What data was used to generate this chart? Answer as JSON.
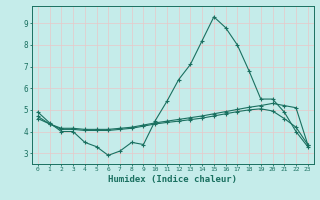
{
  "xlabel": "Humidex (Indice chaleur)",
  "background_color": "#c5ecea",
  "grid_color": "#e0f0ee",
  "line_color": "#1a7060",
  "x_ticks": [
    0,
    1,
    2,
    3,
    4,
    5,
    6,
    7,
    8,
    9,
    10,
    11,
    12,
    13,
    14,
    15,
    16,
    17,
    18,
    19,
    20,
    21,
    22,
    23
  ],
  "ylim": [
    2.5,
    9.8
  ],
  "xlim": [
    -0.5,
    23.5
  ],
  "line1_x": [
    0,
    1,
    2,
    3,
    4,
    5,
    6,
    7,
    8,
    9,
    10,
    11,
    12,
    13,
    14,
    15,
    16,
    17,
    18,
    19,
    20,
    21,
    22,
    23
  ],
  "line1_y": [
    4.9,
    4.4,
    4.0,
    4.0,
    3.5,
    3.3,
    2.9,
    3.1,
    3.5,
    3.4,
    4.5,
    5.4,
    6.4,
    7.1,
    8.2,
    9.3,
    8.8,
    8.0,
    6.8,
    5.5,
    5.5,
    4.9,
    4.0,
    3.3
  ],
  "line2_x": [
    0,
    1,
    2,
    3,
    4,
    5,
    6,
    7,
    8,
    9,
    10,
    11,
    12,
    13,
    14,
    15,
    16,
    17,
    18,
    19,
    20,
    21,
    22,
    23
  ],
  "line2_y": [
    4.7,
    4.35,
    4.1,
    4.1,
    4.05,
    4.05,
    4.05,
    4.1,
    4.15,
    4.25,
    4.35,
    4.42,
    4.48,
    4.55,
    4.62,
    4.72,
    4.82,
    4.92,
    5.0,
    5.05,
    4.95,
    4.6,
    4.2,
    3.4
  ],
  "line3_x": [
    0,
    1,
    2,
    3,
    4,
    5,
    6,
    7,
    8,
    9,
    10,
    11,
    12,
    13,
    14,
    15,
    16,
    17,
    18,
    19,
    20,
    21,
    22,
    23
  ],
  "line3_y": [
    4.6,
    4.35,
    4.15,
    4.15,
    4.1,
    4.1,
    4.1,
    4.15,
    4.2,
    4.3,
    4.4,
    4.48,
    4.56,
    4.64,
    4.72,
    4.82,
    4.92,
    5.02,
    5.12,
    5.2,
    5.3,
    5.2,
    5.1,
    3.4
  ],
  "yticks": [
    3,
    4,
    5,
    6,
    7,
    8,
    9
  ]
}
